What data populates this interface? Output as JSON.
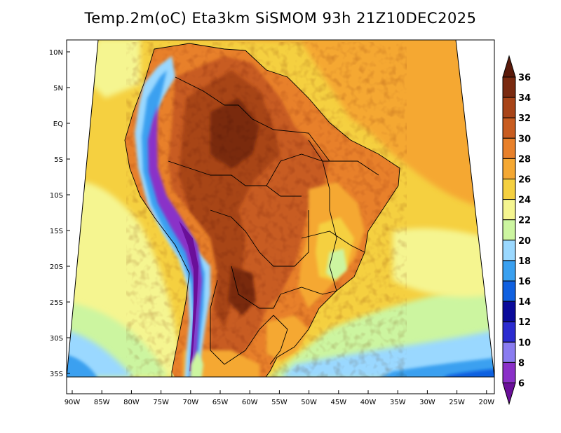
{
  "title": "Temp.2m(oC) Eta3km SiSMOM 93h 21Z10DEC2025",
  "map": {
    "variable": "2m temperature",
    "units": "oC",
    "region": "South America",
    "lon_range": [
      -90,
      -20
    ],
    "lat_range": [
      -37,
      11
    ],
    "lon_ticks": [
      "90W",
      "85W",
      "80W",
      "75W",
      "70W",
      "65W",
      "60W",
      "55W",
      "50W",
      "45W",
      "40W",
      "35W",
      "30W",
      "25W",
      "20W"
    ],
    "lat_ticks": [
      "10N",
      "5N",
      "EQ",
      "5S",
      "10S",
      "15S",
      "20S",
      "25S",
      "30S",
      "35S"
    ]
  },
  "colorbar": {
    "levels": [
      "6",
      "8",
      "10",
      "12",
      "14",
      "16",
      "18",
      "20",
      "22",
      "24",
      "26",
      "28",
      "30",
      "32",
      "34",
      "36"
    ],
    "colors": [
      "#6a0f99",
      "#8a30c8",
      "#8a7cf0",
      "#2b2bd0",
      "#0a0a9a",
      "#1060e0",
      "#3aa0f0",
      "#9ad8ff",
      "#ccf5a0",
      "#f5f590",
      "#f5d040",
      "#f5a833",
      "#e8802a",
      "#c85c20",
      "#a84418",
      "#7a2a10",
      "#5a1a0a"
    ]
  }
}
